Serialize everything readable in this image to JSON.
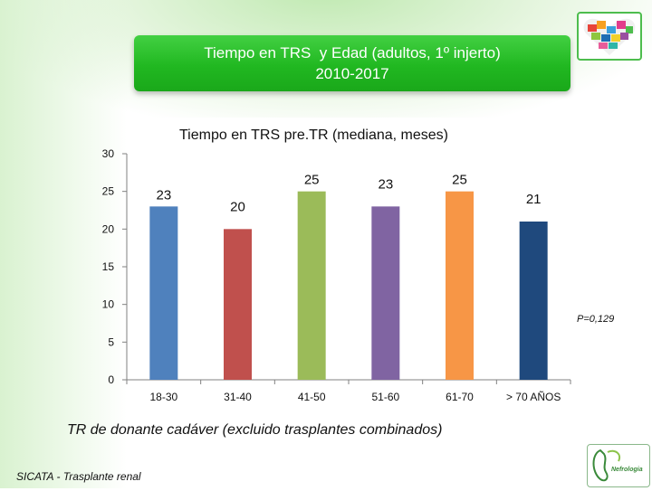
{
  "slide": {
    "title_line1": "Tiempo en TRS  y Edad (adultos, 1º injerto)",
    "title_line2": "2010-2017",
    "footnote": "TR de donante cadáver (excluido trasplantes combinados)",
    "source": "SICATA - Trasplante renal",
    "logo2_text": "Nefrologia"
  },
  "chart_data": {
    "type": "bar",
    "title": "Tiempo en TRS pre.TR (mediana, meses)",
    "categories": [
      "18-30",
      "31-40",
      "41-50",
      "51-60",
      "61-70",
      "> 70 AÑOS"
    ],
    "values": [
      23,
      20,
      25,
      23,
      25,
      21
    ],
    "colors": [
      "#4f81bd",
      "#c0504d",
      "#9bbb59",
      "#8064a2",
      "#f79646",
      "#1f497d"
    ],
    "ylim": [
      0,
      30
    ],
    "yticks": [
      0,
      5,
      10,
      15,
      20,
      25,
      30
    ],
    "xlabel": "",
    "ylabel": "",
    "annotation": "P=0,129",
    "grid": false,
    "legend": "none"
  }
}
